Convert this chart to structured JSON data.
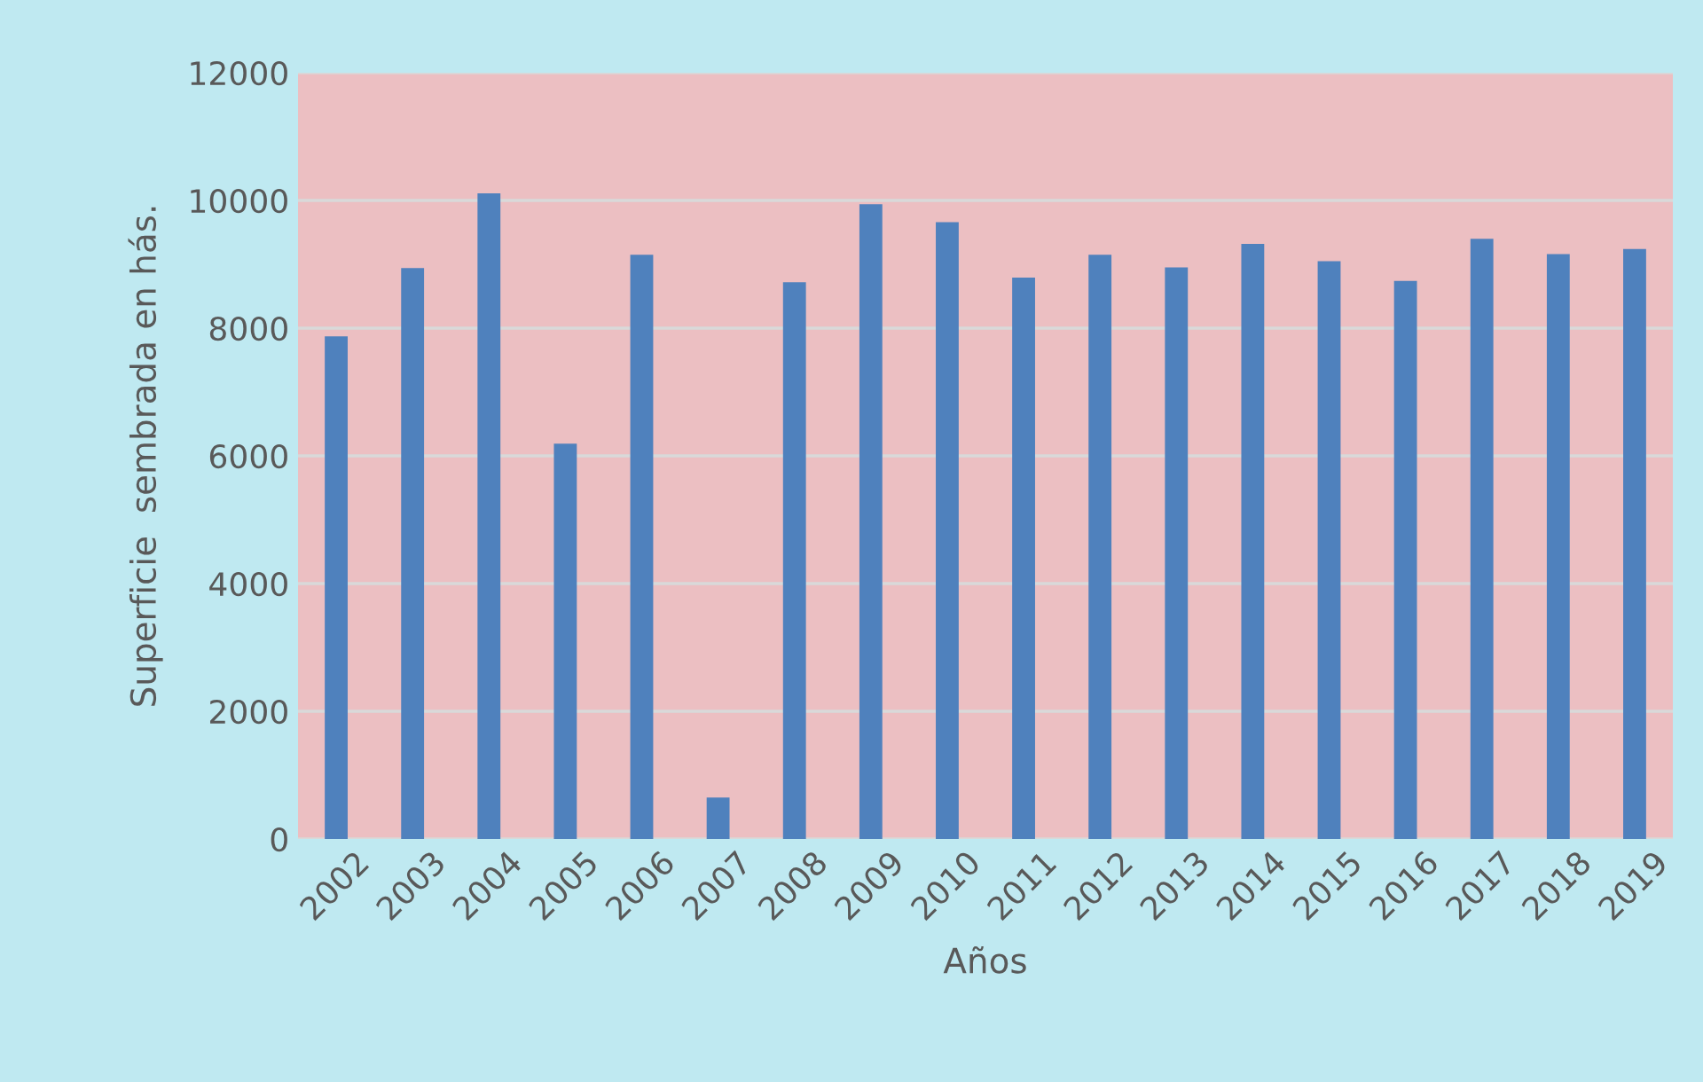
{
  "chart_data": {
    "type": "bar",
    "xlabel": "Años",
    "ylabel": "Superficie  sembrada en hás.",
    "categories": [
      "2002",
      "2003",
      "2004",
      "2005",
      "2006",
      "2007",
      "2008",
      "2009",
      "2010",
      "2011",
      "2012",
      "2013",
      "2014",
      "2015",
      "2016",
      "2017",
      "2018",
      "2019"
    ],
    "values": [
      7870,
      8940,
      10110,
      6190,
      9150,
      650,
      8720,
      9940,
      9660,
      8790,
      9150,
      8950,
      9320,
      9050,
      8740,
      9400,
      9160,
      9240
    ],
    "color": "#4f81bd",
    "ylim": [
      0,
      12000
    ],
    "yticks": [
      0,
      2000,
      4000,
      6000,
      8000,
      10000,
      12000
    ],
    "grid": "y"
  }
}
